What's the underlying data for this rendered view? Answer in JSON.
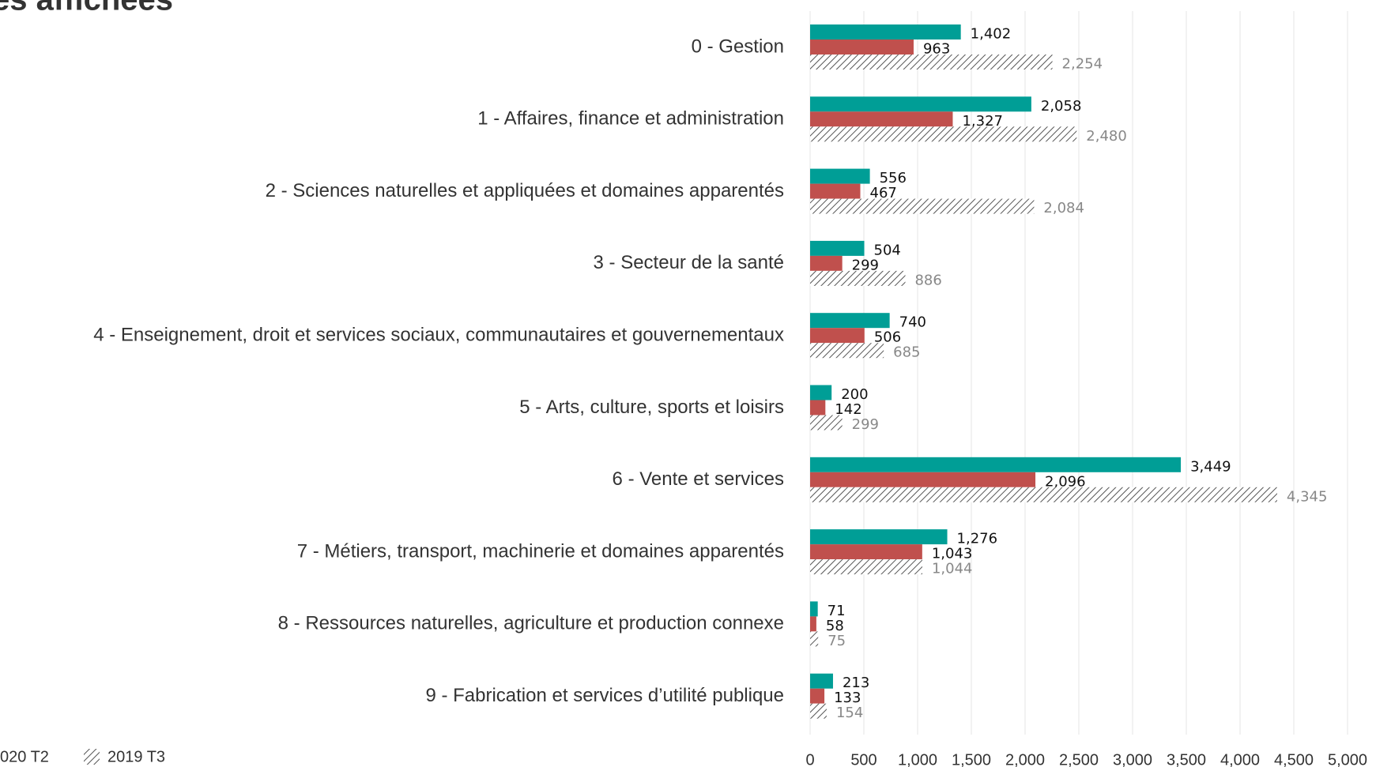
{
  "chart_data": {
    "type": "hbar",
    "title": "es affichées",
    "categories": [
      "0 - Gestion",
      "1 - Affaires, finance et administration",
      "2 - Sciences naturelles et appliquées et domaines apparentés",
      "3 - Secteur de la santé",
      "4 - Enseignement, droit et services sociaux, communautaires et gouvernementaux",
      "5 - Arts, culture, sports et loisirs",
      "6 - Vente et services",
      "7 - Métiers, transport, machinerie et domaines apparentés",
      "8 - Ressources naturelles, agriculture et production connexe",
      "9 - Fabrication et services d’utilité publique"
    ],
    "series": [
      {
        "name": null,
        "color": "#009e96",
        "values": [
          1402,
          2058,
          556,
          504,
          740,
          200,
          3449,
          1276,
          71,
          213
        ],
        "value_labels": [
          "1,402",
          "2,058",
          "556",
          "504",
          "740",
          "200",
          "3,449",
          "1,276",
          "71",
          "213"
        ]
      },
      {
        "name": "020 T2",
        "color": "#c0504d",
        "values": [
          963,
          1327,
          467,
          299,
          506,
          142,
          2096,
          1043,
          58,
          133
        ],
        "value_labels": [
          "963",
          "1,327",
          "467",
          "299",
          "506",
          "142",
          "2,096",
          "1,043",
          "58",
          "133"
        ]
      },
      {
        "name": "2019 T3",
        "color": "#555555",
        "hatch": true,
        "values": [
          2254,
          2480,
          2084,
          886,
          685,
          299,
          4345,
          1044,
          75,
          154
        ],
        "value_labels": [
          "2,254",
          "2,480",
          "2,084",
          "886",
          "685",
          "299",
          "4,345",
          "1,044",
          "75",
          "154"
        ]
      }
    ],
    "xlim": [
      0,
      5000
    ],
    "xticks": [
      0,
      500,
      {
        "value": 1000,
        "label": "1,000"
      },
      {
        "value": 1500,
        "label": "1,500"
      },
      {
        "value": 2000,
        "label": "2,000"
      },
      {
        "value": 2500,
        "label": "2,500"
      },
      {
        "value": 3000,
        "label": "3,000"
      },
      {
        "value": 3500,
        "label": "3,500"
      },
      {
        "value": 4000,
        "label": "4,000"
      },
      {
        "value": 4500,
        "label": "4,500"
      },
      {
        "value": 5000,
        "label": "5,000"
      }
    ],
    "grid": true
  }
}
